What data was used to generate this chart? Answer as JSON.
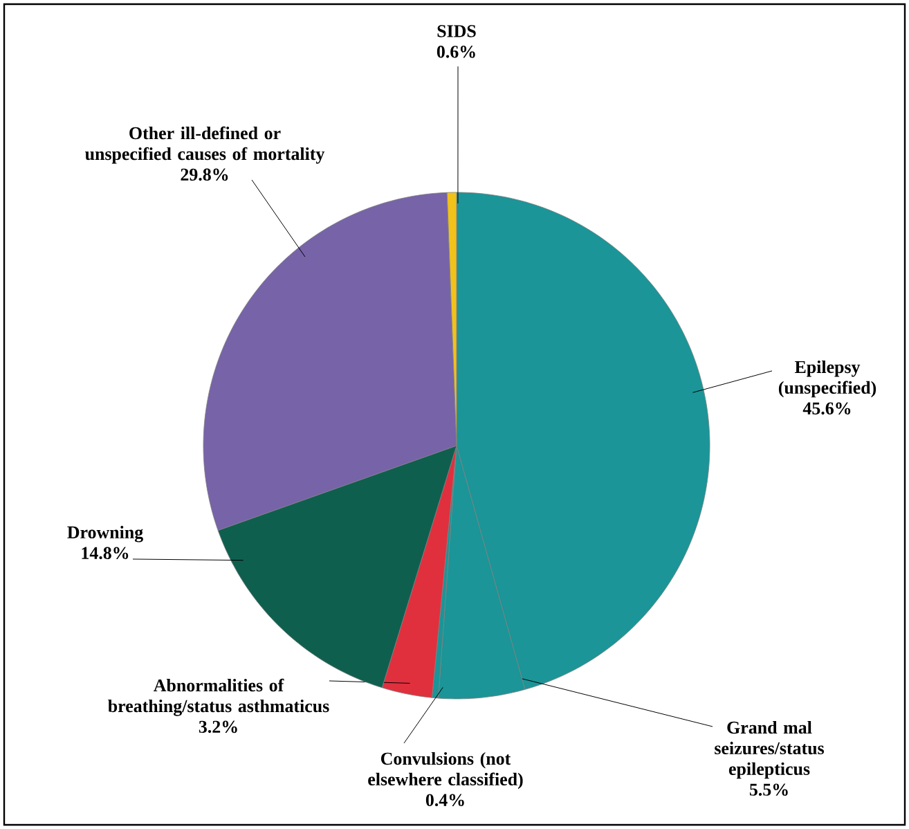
{
  "chart_data": {
    "type": "pie",
    "categories": [
      "Epilepsy (unspecified)",
      "Grand mal seizures/status epilepticus",
      "Convulsions (not elsewhere classified)",
      "Abnormalities of breathing/status asthmaticus",
      "Drowning",
      "Other ill-defined or unspecified causes of mortality",
      "SIDS"
    ],
    "values": [
      45.6,
      5.5,
      0.4,
      3.2,
      14.8,
      29.8,
      0.6
    ],
    "value_labels": [
      "45.6%",
      "5.5%",
      "0.4%",
      "3.2%",
      "14.8%",
      "29.8%",
      "0.6%"
    ],
    "colors": [
      "#1b9597",
      "#1b9597",
      "#1b9597",
      "#e0303e",
      "#0f5f4f",
      "#7763a8",
      "#f2c21a"
    ]
  }
}
